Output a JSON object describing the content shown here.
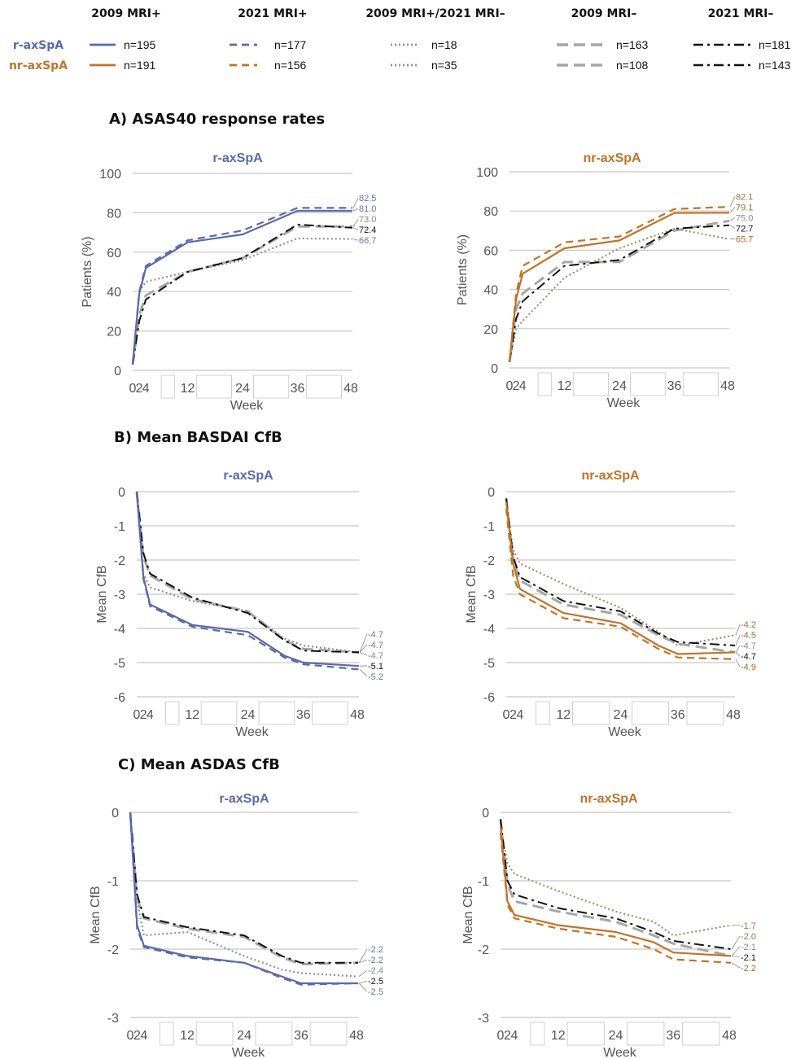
{
  "legend": {
    "columns": [
      "2009 MRI+",
      "2021 MRI+",
      "2009 MRI+/2021 MRI–",
      "2009 MRI–",
      "2021 MRI–"
    ],
    "rows": [
      {
        "label": "r-axSpA",
        "color": "#5b6aa8",
        "counts": [
          "n=195",
          "n=177",
          "n=18",
          "n=163",
          "n=181"
        ]
      },
      {
        "label": "nr-axSpA",
        "color": "#c0732a",
        "counts": [
          "n=191",
          "n=156",
          "n=35",
          "n=108",
          "n=143"
        ]
      }
    ]
  },
  "sections": [
    {
      "id": "A",
      "title": "A) ASAS40 response rates"
    },
    {
      "id": "B",
      "title": "B) Mean BASDAI CfB"
    },
    {
      "id": "C",
      "title": "C) Mean ASDAS CfB"
    }
  ],
  "colors": {
    "r": "#5b6aa8",
    "nr": "#c0732a",
    "mri_neg_2009": "#a6a6a6",
    "mri_neg_2021": "#111111",
    "mixed_r": "#8a8fb0",
    "mixed_nr": "#a38b7a",
    "grid": "#c8c8c8"
  },
  "chart_data": [
    {
      "id": "A-r",
      "type": "line",
      "title": "r-axSpA",
      "ylabel": "Patients (%)",
      "xlabel": "Week",
      "ylim": [
        0,
        100
      ],
      "yticks": [
        0,
        20,
        40,
        60,
        80,
        100
      ],
      "xticks": [
        "0",
        "2",
        "4",
        "12",
        "24",
        "36",
        "48"
      ],
      "end_labels": [
        "82.5",
        "81.0",
        "73.0",
        "72.4",
        "66.7"
      ],
      "series": [
        {
          "group": "2009 MRI+",
          "x": [
            0,
            2,
            4,
            12,
            24,
            36,
            48
          ],
          "y": [
            3,
            39,
            52,
            65,
            69,
            81,
            81
          ]
        },
        {
          "group": "2021 MRI+",
          "x": [
            0,
            2,
            4,
            12,
            24,
            36,
            48
          ],
          "y": [
            3,
            40,
            53,
            66,
            71,
            82.5,
            82.5
          ]
        },
        {
          "group": "2009 MRI+/2021 MRI–",
          "x": [
            0,
            2,
            4,
            12,
            24,
            36,
            48
          ],
          "y": [
            3,
            40,
            45,
            50,
            56,
            67,
            66.7
          ]
        },
        {
          "group": "2009 MRI–",
          "x": [
            0,
            2,
            4,
            12,
            24,
            36,
            48
          ],
          "y": [
            3,
            28,
            38,
            50,
            57,
            73,
            73
          ]
        },
        {
          "group": "2021 MRI–",
          "x": [
            0,
            2,
            4,
            12,
            24,
            36,
            48
          ],
          "y": [
            3,
            25,
            36,
            50,
            57,
            74,
            72.4
          ]
        }
      ]
    },
    {
      "id": "A-nr",
      "type": "line",
      "title": "nr-axSpA",
      "ylabel": "Patients (%)",
      "xlabel": "Week",
      "ylim": [
        0,
        100
      ],
      "yticks": [
        0,
        20,
        40,
        60,
        80,
        100
      ],
      "xticks": [
        "0",
        "2",
        "4",
        "12",
        "24",
        "36",
        "48"
      ],
      "end_labels": [
        "82.1",
        "79.1",
        "75.0",
        "72.7",
        "65.7"
      ],
      "series": [
        {
          "group": "2009 MRI+",
          "x": [
            0,
            2,
            4,
            12,
            24,
            36,
            48
          ],
          "y": [
            3,
            35,
            48,
            61,
            65,
            79,
            79.1
          ]
        },
        {
          "group": "2021 MRI+",
          "x": [
            0,
            2,
            4,
            12,
            24,
            36,
            48
          ],
          "y": [
            3,
            38,
            52,
            64,
            67,
            81,
            82.1
          ]
        },
        {
          "group": "2009 MRI+/2021 MRI–",
          "x": [
            0,
            2,
            4,
            12,
            24,
            36,
            48
          ],
          "y": [
            3,
            20,
            24,
            46,
            61,
            71,
            65.7
          ]
        },
        {
          "group": "2009 MRI–",
          "x": [
            0,
            2,
            4,
            12,
            24,
            36,
            48
          ],
          "y": [
            3,
            30,
            38,
            54,
            54,
            70,
            75
          ]
        },
        {
          "group": "2021 MRI–",
          "x": [
            0,
            2,
            4,
            12,
            24,
            36,
            48
          ],
          "y": [
            3,
            25,
            34,
            52,
            55,
            71,
            72.7
          ]
        }
      ]
    },
    {
      "id": "B-r",
      "type": "line",
      "title": "r-axSpA",
      "ylabel": "Mean CfB",
      "xlabel": "Week",
      "ylim": [
        -6,
        0
      ],
      "yticks": [
        0,
        -1,
        -2,
        -3,
        -4,
        -5,
        -6
      ],
      "xticks": [
        "0",
        "2",
        "4",
        "12",
        "24",
        "32",
        "36",
        "48"
      ],
      "end_labels": [
        "-4.7",
        "-4.7",
        "-4.7",
        "-5.1",
        "-5.2"
      ],
      "series": [
        {
          "group": "2009 MRI+",
          "x": [
            0,
            2,
            4,
            12,
            24,
            32,
            36,
            48
          ],
          "y": [
            0,
            -2.5,
            -3.3,
            -3.9,
            -4.1,
            -4.8,
            -5.0,
            -5.1
          ]
        },
        {
          "group": "2021 MRI+",
          "x": [
            0,
            2,
            4,
            12,
            24,
            32,
            36,
            48
          ],
          "y": [
            0,
            -2.55,
            -3.35,
            -3.95,
            -4.2,
            -4.85,
            -5.05,
            -5.2
          ]
        },
        {
          "group": "2009 MRI+/2021 MRI–",
          "x": [
            0,
            2,
            4,
            12,
            24,
            32,
            36,
            48
          ],
          "y": [
            0,
            -2.4,
            -2.8,
            -3.2,
            -3.5,
            -4.3,
            -4.5,
            -4.7
          ]
        },
        {
          "group": "2009 MRI–",
          "x": [
            0,
            2,
            4,
            12,
            24,
            32,
            36,
            48
          ],
          "y": [
            0,
            -1.9,
            -2.45,
            -3.15,
            -3.5,
            -4.35,
            -4.6,
            -4.7
          ]
        },
        {
          "group": "2021 MRI–",
          "x": [
            0,
            2,
            4,
            12,
            24,
            32,
            36,
            48
          ],
          "y": [
            0,
            -1.8,
            -2.4,
            -3.1,
            -3.55,
            -4.35,
            -4.65,
            -4.7
          ]
        }
      ]
    },
    {
      "id": "B-nr",
      "type": "line",
      "title": "nr-axSpA",
      "ylabel": "Mean CfB",
      "xlabel": "Week",
      "ylim": [
        -6,
        0
      ],
      "yticks": [
        0,
        -1,
        -2,
        -3,
        -4,
        -5,
        -6
      ],
      "xticks": [
        "0",
        "2",
        "4",
        "12",
        "24",
        "32",
        "36",
        "48"
      ],
      "end_labels": [
        "-4.2",
        "-4.5",
        "-4.7",
        "-4.7",
        "-4.9"
      ],
      "series": [
        {
          "group": "2009 MRI+",
          "x": [
            0,
            2,
            4,
            12,
            24,
            32,
            36,
            48
          ],
          "y": [
            -0.3,
            -2.1,
            -2.85,
            -3.55,
            -3.85,
            -4.5,
            -4.75,
            -4.7
          ]
        },
        {
          "group": "2021 MRI+",
          "x": [
            0,
            2,
            4,
            12,
            24,
            32,
            36,
            48
          ],
          "y": [
            -0.5,
            -2.45,
            -3.0,
            -3.7,
            -3.95,
            -4.6,
            -4.85,
            -4.9
          ]
        },
        {
          "group": "2009 MRI+/2021 MRI–",
          "x": [
            0,
            2,
            4,
            12,
            24,
            32,
            36,
            48
          ],
          "y": [
            -0.3,
            -1.7,
            -2.1,
            -2.7,
            -3.4,
            -4.1,
            -4.5,
            -4.2
          ]
        },
        {
          "group": "2009 MRI–",
          "x": [
            0,
            2,
            4,
            12,
            24,
            32,
            36,
            48
          ],
          "y": [
            -0.2,
            -2.0,
            -2.6,
            -3.3,
            -3.6,
            -4.2,
            -4.45,
            -4.7
          ]
        },
        {
          "group": "2021 MRI–",
          "x": [
            0,
            2,
            4,
            12,
            24,
            32,
            36,
            48
          ],
          "y": [
            -0.2,
            -1.9,
            -2.5,
            -3.2,
            -3.5,
            -4.15,
            -4.4,
            -4.5
          ]
        }
      ]
    },
    {
      "id": "C-r",
      "type": "line",
      "title": "r-axSpA",
      "ylabel": "Mean CfB",
      "xlabel": "Week",
      "ylim": [
        -3,
        0
      ],
      "yticks": [
        0,
        -1,
        -2,
        -3
      ],
      "xticks": [
        "0",
        "2",
        "4",
        "12",
        "24",
        "32",
        "36",
        "48"
      ],
      "end_labels": [
        "-2.2",
        "-2.2",
        "-2.4",
        "-2.5",
        "-2.5"
      ],
      "series": [
        {
          "group": "2009 MRI+",
          "x": [
            0,
            2,
            4,
            12,
            24,
            32,
            36,
            48
          ],
          "y": [
            0,
            -1.65,
            -1.95,
            -2.1,
            -2.2,
            -2.4,
            -2.5,
            -2.5
          ]
        },
        {
          "group": "2021 MRI+",
          "x": [
            0,
            2,
            4,
            12,
            24,
            32,
            36,
            48
          ],
          "y": [
            0,
            -1.7,
            -1.97,
            -2.12,
            -2.2,
            -2.42,
            -2.52,
            -2.5
          ]
        },
        {
          "group": "2009 MRI+/2021 MRI–",
          "x": [
            0,
            2,
            4,
            12,
            24,
            32,
            36,
            48
          ],
          "y": [
            0,
            -1.3,
            -1.8,
            -1.75,
            -2.1,
            -2.3,
            -2.35,
            -2.4
          ]
        },
        {
          "group": "2009 MRI–",
          "x": [
            0,
            2,
            4,
            12,
            24,
            32,
            36,
            48
          ],
          "y": [
            0,
            -1.25,
            -1.55,
            -1.7,
            -1.82,
            -2.12,
            -2.22,
            -2.2
          ]
        },
        {
          "group": "2021 MRI–",
          "x": [
            0,
            2,
            4,
            12,
            24,
            32,
            36,
            48
          ],
          "y": [
            0,
            -1.2,
            -1.53,
            -1.68,
            -1.8,
            -2.1,
            -2.2,
            -2.2
          ]
        }
      ]
    },
    {
      "id": "C-nr",
      "type": "line",
      "title": "nr-axSpA",
      "ylabel": "Mean CfB",
      "xlabel": "Week",
      "ylim": [
        -3,
        0
      ],
      "yticks": [
        0,
        -1,
        -2,
        -3
      ],
      "xticks": [
        "0",
        "2",
        "4",
        "12",
        "24",
        "32",
        "36",
        "48"
      ],
      "end_labels": [
        "-1.7",
        "-2.0",
        "-2.1",
        "-2.1",
        "-2.2"
      ],
      "series": [
        {
          "group": "2009 MRI+",
          "x": [
            0,
            2,
            4,
            12,
            24,
            32,
            36,
            48
          ],
          "y": [
            -0.2,
            -1.3,
            -1.5,
            -1.65,
            -1.75,
            -1.9,
            -2.05,
            -2.1
          ]
        },
        {
          "group": "2021 MRI+",
          "x": [
            0,
            2,
            4,
            12,
            24,
            32,
            36,
            48
          ],
          "y": [
            -0.3,
            -1.35,
            -1.55,
            -1.7,
            -1.82,
            -2.0,
            -2.15,
            -2.2
          ]
        },
        {
          "group": "2009 MRI+/2021 MRI–",
          "x": [
            0,
            2,
            4,
            12,
            24,
            32,
            36,
            48
          ],
          "y": [
            -0.2,
            -0.75,
            -0.9,
            -1.15,
            -1.45,
            -1.6,
            -1.8,
            -1.65
          ]
        },
        {
          "group": "2009 MRI–",
          "x": [
            0,
            2,
            4,
            12,
            24,
            32,
            36,
            48
          ],
          "y": [
            -0.1,
            -1.05,
            -1.3,
            -1.45,
            -1.6,
            -1.8,
            -1.92,
            -2.1
          ]
        },
        {
          "group": "2021 MRI–",
          "x": [
            0,
            2,
            4,
            12,
            24,
            32,
            36,
            48
          ],
          "y": [
            -0.1,
            -1.0,
            -1.2,
            -1.4,
            -1.55,
            -1.75,
            -1.88,
            -2.0
          ]
        }
      ]
    }
  ]
}
